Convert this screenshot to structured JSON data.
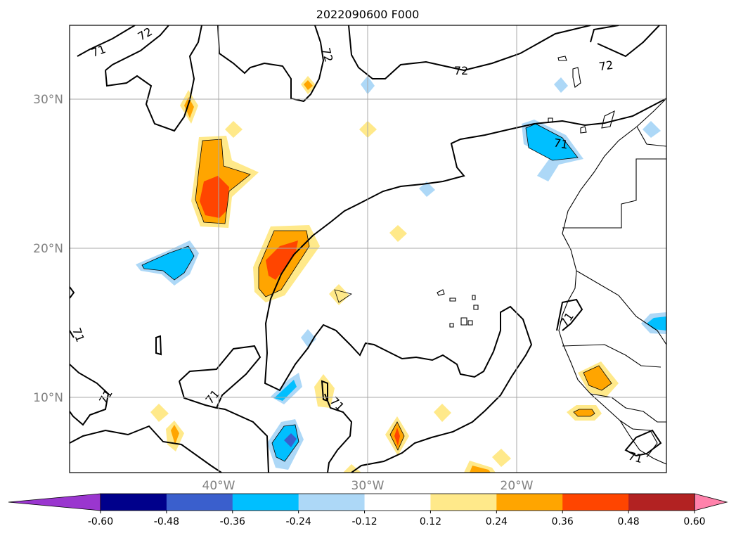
{
  "title": "2022090600 F000",
  "map": {
    "lat_labels": [
      "30°N",
      "20°N",
      "10°N"
    ],
    "lon_labels": [
      "40°W",
      "30°W",
      "20°W"
    ],
    "contour_levels": [
      "71",
      "72"
    ],
    "gridlines": true
  },
  "colorbar": {
    "extend": "both",
    "ticks": [
      "-0.60",
      "-0.48",
      "-0.36",
      "-0.24",
      "-0.12",
      "0.12",
      "0.24",
      "0.36",
      "0.48",
      "0.60"
    ],
    "colors": [
      "#9a36cf",
      "#00008b",
      "#3a5fcd",
      "#00bfff",
      "#add8f7",
      "#ffffff",
      "#ffe98a",
      "#ffa500",
      "#ff4500",
      "#b22222",
      "#ff82ab"
    ]
  },
  "shading_colors": {
    "pos_light": "#ffe98a",
    "pos_mid": "#ffa500",
    "pos_strong": "#ff4500",
    "neg_light": "#add8f7",
    "neg_mid": "#00bfff",
    "neg_strong": "#3a5fcd"
  }
}
